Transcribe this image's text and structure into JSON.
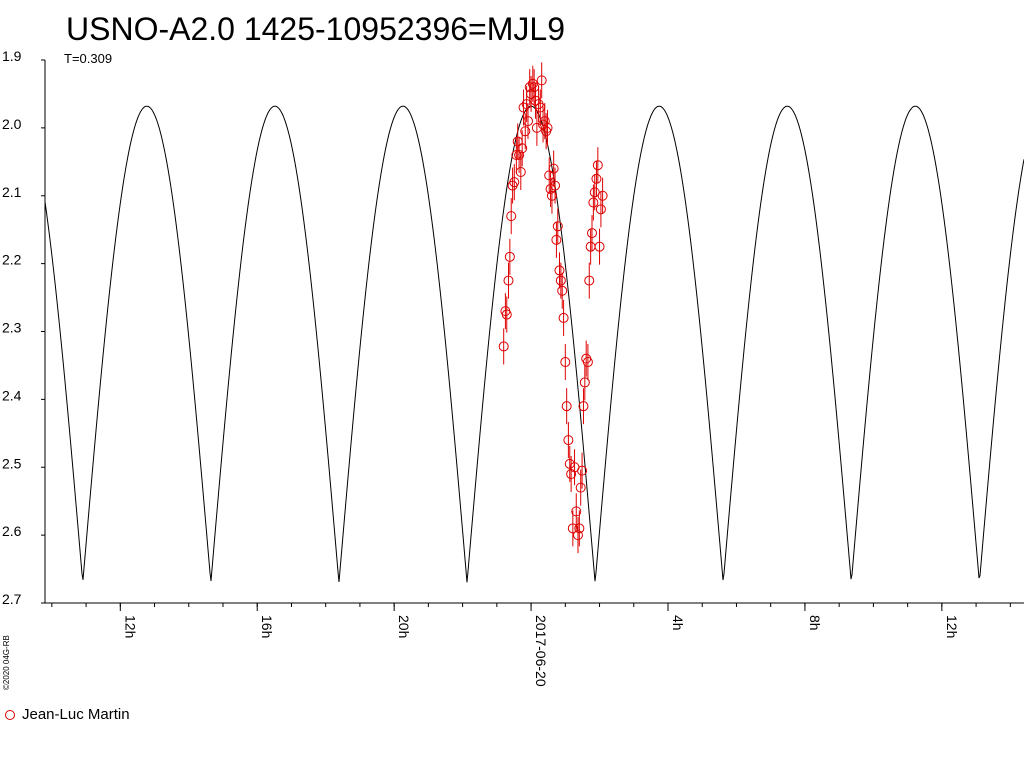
{
  "chart_data": {
    "type": "scatter",
    "title": "USNO-A2.0 1425-10952396=MJL9",
    "annotation": "T=0.309",
    "credit": "©2020 04G-RB",
    "xlabel": "",
    "ylabel": "",
    "y_inverted": true,
    "ylim": [
      1.9,
      2.7
    ],
    "y_ticks": [
      "1.9",
      "2.0",
      "2.1",
      "2.2",
      "2.3",
      "2.4",
      "2.5",
      "2.6",
      "2.7"
    ],
    "x_range_hours": [
      9.8,
      38.4
    ],
    "x_tick_labels": [
      {
        "hour": 12,
        "label": "12h"
      },
      {
        "hour": 16,
        "label": "16h"
      },
      {
        "hour": 20,
        "label": "20h"
      },
      {
        "hour": 24,
        "label": "2017-06-20"
      },
      {
        "hour": 28,
        "label": "4h"
      },
      {
        "hour": 32,
        "label": "8h"
      },
      {
        "hour": 36,
        "label": "12h"
      }
    ],
    "model_curve": {
      "period_hours": 3.742,
      "min_hour": 24.0,
      "min_mag": 1.968,
      "max_mag": 2.67,
      "color": "#000000"
    },
    "series": [
      {
        "name": "Jean-Luc Martin",
        "color": "#dd0000",
        "marker": "open-circle",
        "points": [
          {
            "x": 23.2,
            "y": 2.322
          },
          {
            "x": 23.25,
            "y": 2.27
          },
          {
            "x": 23.29,
            "y": 2.275
          },
          {
            "x": 23.34,
            "y": 2.225
          },
          {
            "x": 23.38,
            "y": 2.19
          },
          {
            "x": 23.42,
            "y": 2.13
          },
          {
            "x": 23.46,
            "y": 2.085
          },
          {
            "x": 23.51,
            "y": 2.08
          },
          {
            "x": 23.57,
            "y": 2.04
          },
          {
            "x": 23.61,
            "y": 2.02
          },
          {
            "x": 23.65,
            "y": 2.04
          },
          {
            "x": 23.7,
            "y": 2.065
          },
          {
            "x": 23.74,
            "y": 2.03
          },
          {
            "x": 23.78,
            "y": 1.97
          },
          {
            "x": 23.83,
            "y": 2.005
          },
          {
            "x": 23.87,
            "y": 1.965
          },
          {
            "x": 23.91,
            "y": 1.99
          },
          {
            "x": 23.96,
            "y": 1.94
          },
          {
            "x": 24.0,
            "y": 1.95
          },
          {
            "x": 24.05,
            "y": 1.935
          },
          {
            "x": 24.09,
            "y": 1.94
          },
          {
            "x": 24.13,
            "y": 1.96
          },
          {
            "x": 24.17,
            "y": 2.0
          },
          {
            "x": 24.22,
            "y": 1.965
          },
          {
            "x": 24.27,
            "y": 1.97
          },
          {
            "x": 24.31,
            "y": 1.93
          },
          {
            "x": 24.35,
            "y": 1.995
          },
          {
            "x": 24.4,
            "y": 1.99
          },
          {
            "x": 24.44,
            "y": 2.005
          },
          {
            "x": 24.48,
            "y": 2.0
          },
          {
            "x": 24.53,
            "y": 2.07
          },
          {
            "x": 24.57,
            "y": 2.09
          },
          {
            "x": 24.61,
            "y": 2.1
          },
          {
            "x": 24.66,
            "y": 2.06
          },
          {
            "x": 24.7,
            "y": 2.085
          },
          {
            "x": 24.74,
            "y": 2.165
          },
          {
            "x": 24.78,
            "y": 2.145
          },
          {
            "x": 24.83,
            "y": 2.21
          },
          {
            "x": 24.87,
            "y": 2.225
          },
          {
            "x": 24.91,
            "y": 2.24
          },
          {
            "x": 24.95,
            "y": 2.28
          },
          {
            "x": 25.0,
            "y": 2.345
          },
          {
            "x": 25.04,
            "y": 2.41
          },
          {
            "x": 25.09,
            "y": 2.46
          },
          {
            "x": 25.13,
            "y": 2.495
          },
          {
            "x": 25.17,
            "y": 2.51
          },
          {
            "x": 25.22,
            "y": 2.59
          },
          {
            "x": 25.27,
            "y": 2.5
          },
          {
            "x": 25.32,
            "y": 2.565
          },
          {
            "x": 25.37,
            "y": 2.6
          },
          {
            "x": 25.41,
            "y": 2.59
          },
          {
            "x": 25.45,
            "y": 2.53
          },
          {
            "x": 25.49,
            "y": 2.505
          },
          {
            "x": 25.53,
            "y": 2.41
          },
          {
            "x": 25.57,
            "y": 2.375
          },
          {
            "x": 25.61,
            "y": 2.34
          },
          {
            "x": 25.66,
            "y": 2.345
          },
          {
            "x": 25.7,
            "y": 2.225
          },
          {
            "x": 25.74,
            "y": 2.175
          },
          {
            "x": 25.78,
            "y": 2.155
          },
          {
            "x": 25.82,
            "y": 2.11
          },
          {
            "x": 25.86,
            "y": 2.095
          },
          {
            "x": 25.91,
            "y": 2.075
          },
          {
            "x": 25.95,
            "y": 2.055
          },
          {
            "x": 26.0,
            "y": 2.175
          },
          {
            "x": 26.04,
            "y": 2.12
          },
          {
            "x": 26.09,
            "y": 2.1
          }
        ]
      }
    ]
  }
}
